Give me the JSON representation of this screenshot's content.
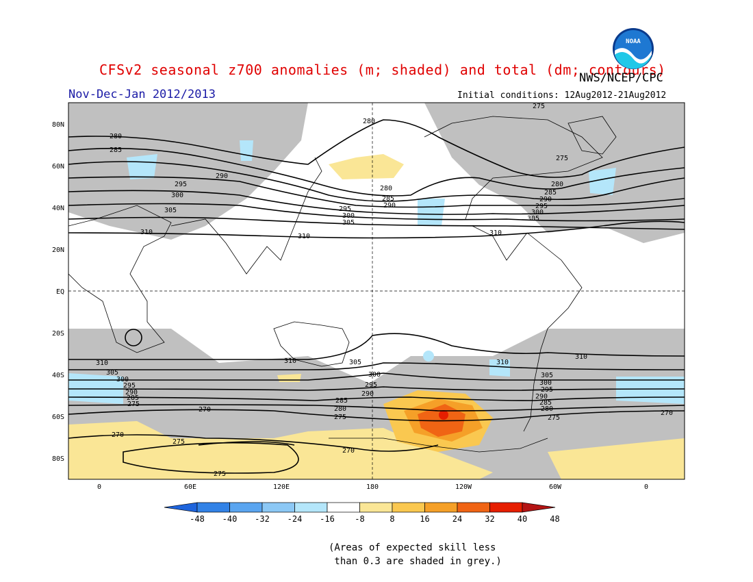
{
  "header": {
    "title": "CFSv2 seasonal z700 anomalies (m; shaded) and total (dm; contours)",
    "agency": "NWS/NCEP/CPC",
    "logo_text": "NOAA",
    "period": "Nov-Dec-Jan 2012/2013",
    "initial_conditions": "Initial conditions: 12Aug2012-21Aug2012"
  },
  "map": {
    "lat_labels": [
      "80N",
      "60N",
      "40N",
      "20N",
      "EQ",
      "20S",
      "40S",
      "60S",
      "80S"
    ],
    "lon_labels": [
      "0",
      "60E",
      "120E",
      "180",
      "120W",
      "60W",
      "0"
    ],
    "contour_labels": [
      "275",
      "280",
      "285",
      "290",
      "295",
      "300",
      "305",
      "310",
      "270"
    ]
  },
  "colorbar": {
    "labels": [
      "-48",
      "-40",
      "-32",
      "-24",
      "-16",
      "-8",
      "8",
      "16",
      "24",
      "32",
      "40",
      "48"
    ],
    "colors": [
      "#1e64dc",
      "#3282e6",
      "#5aa5f0",
      "#8cc8f5",
      "#b4e6fa",
      "#ffffff",
      "#fae696",
      "#fac850",
      "#f5a028",
      "#f06414",
      "#e61e00",
      "#b41414"
    ]
  },
  "footnote": "(Areas of expected skill less\n than 0.3 are shaded in grey.)"
}
